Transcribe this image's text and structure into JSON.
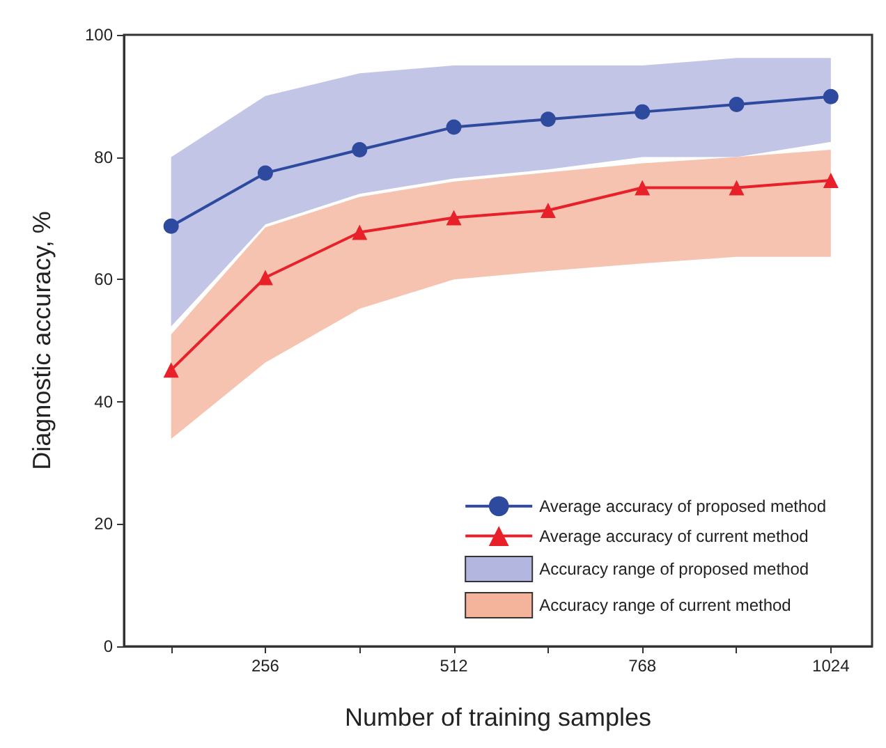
{
  "chart_data": {
    "type": "line",
    "xlabel": "Number of training samples",
    "ylabel": "Diagnostic accuracy, %",
    "x": [
      128,
      256,
      384,
      512,
      640,
      768,
      896,
      1024
    ],
    "series": [
      {
        "name": "Average accuracy of proposed method",
        "color": "#2e4a9e",
        "marker": "circle",
        "values": [
          68.7,
          77.4,
          81.2,
          84.9,
          86.2,
          87.4,
          88.6,
          89.9
        ]
      },
      {
        "name": "Average accuracy of current method",
        "color": "#e8202a",
        "marker": "triangle",
        "values": [
          45.2,
          60.3,
          67.7,
          70.1,
          71.3,
          75.0,
          75.0,
          76.2
        ]
      },
      {
        "name": "Accuracy range of proposed method",
        "type": "area",
        "color": "#b3b6df",
        "values": [
          null,
          null,
          null,
          null,
          null,
          null,
          null,
          null
        ],
        "lower": [
          52.3,
          69,
          74,
          76.5,
          78,
          80,
          80,
          82.5
        ],
        "upper": [
          80,
          90,
          93.7,
          95,
          95,
          95,
          96.2,
          96.2
        ]
      },
      {
        "name": "Accuracy range of current method",
        "type": "area",
        "color": "#f4b49c",
        "values": [
          null,
          null,
          null,
          null,
          null,
          null,
          null,
          null
        ],
        "lower": [
          33.9,
          46.4,
          55.2,
          60,
          61.4,
          62.6,
          63.7,
          63.7
        ],
        "upper": [
          51,
          68.5,
          73.5,
          76,
          77.5,
          79,
          80,
          81.2
        ]
      }
    ],
    "xlim": [
      64,
      1080
    ],
    "xticks": [
      {
        "value": 128,
        "label": null
      },
      256,
      {
        "value": 384,
        "label": null
      },
      512,
      {
        "value": 640,
        "label": null
      },
      768,
      {
        "value": 896,
        "label": null
      },
      1024
    ],
    "ylim": [
      0,
      100
    ],
    "yticks": [
      0,
      20,
      40,
      60,
      80,
      100
    ],
    "legend": "bottom right",
    "grid": false
  }
}
